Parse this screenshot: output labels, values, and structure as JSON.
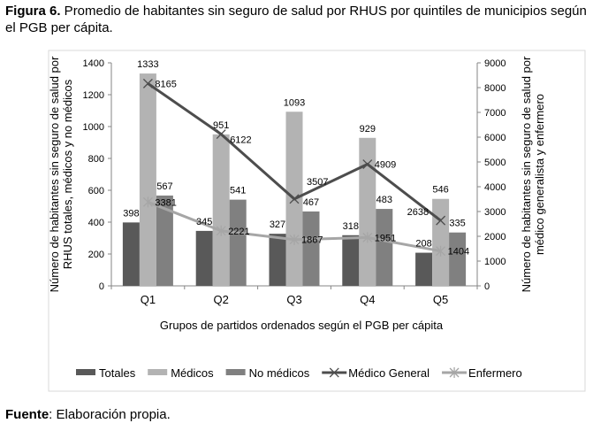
{
  "caption": {
    "label": "Figura 6.",
    "text": " Promedio de habitantes sin seguro de salud por RHUS por quintiles de municipios según el PGB per cápita."
  },
  "source": {
    "label": "Fuente",
    "text": ": Elaboración propia."
  },
  "chart_data": {
    "type": "bar",
    "categories": [
      "Q1",
      "Q2",
      "Q3",
      "Q4",
      "Q5"
    ],
    "xlabel": "Grupos de partidos ordenados según el PGB per cápita",
    "ylabel": "Número de habitantes sin seguro de salud por RHUS totales, médicos y no médicos",
    "ylabel2": "Número de habitantes sin seguro de salud por médico generalista y enfermero",
    "ylim": [
      0,
      1400
    ],
    "yticks": [
      0,
      200,
      400,
      600,
      800,
      1000,
      1200,
      1400
    ],
    "y2lim": [
      0,
      9000
    ],
    "y2ticks": [
      0,
      1000,
      2000,
      3000,
      4000,
      5000,
      6000,
      7000,
      8000,
      9000
    ],
    "series": [
      {
        "name": "Totales",
        "type": "bar",
        "axis": "left",
        "color": "#595959",
        "values": [
          398,
          345,
          327,
          318,
          208
        ]
      },
      {
        "name": "Médicos",
        "type": "bar",
        "axis": "left",
        "color": "#b3b3b3",
        "values": [
          1333,
          951,
          1093,
          929,
          546
        ]
      },
      {
        "name": "No médicos",
        "type": "bar",
        "axis": "left",
        "color": "#808080",
        "values": [
          567,
          541,
          467,
          483,
          335
        ]
      },
      {
        "name": "Médico General",
        "type": "line",
        "axis": "right",
        "marker": "x",
        "color": "#4d4d4d",
        "values": [
          8165,
          6122,
          3507,
          4909,
          2638
        ]
      },
      {
        "name": "Enfermero",
        "type": "line",
        "axis": "right",
        "marker": "star",
        "color": "#a6a6a6",
        "values": [
          3381,
          2221,
          1867,
          1951,
          1404
        ]
      }
    ],
    "legend": "bottom",
    "grid": false
  }
}
